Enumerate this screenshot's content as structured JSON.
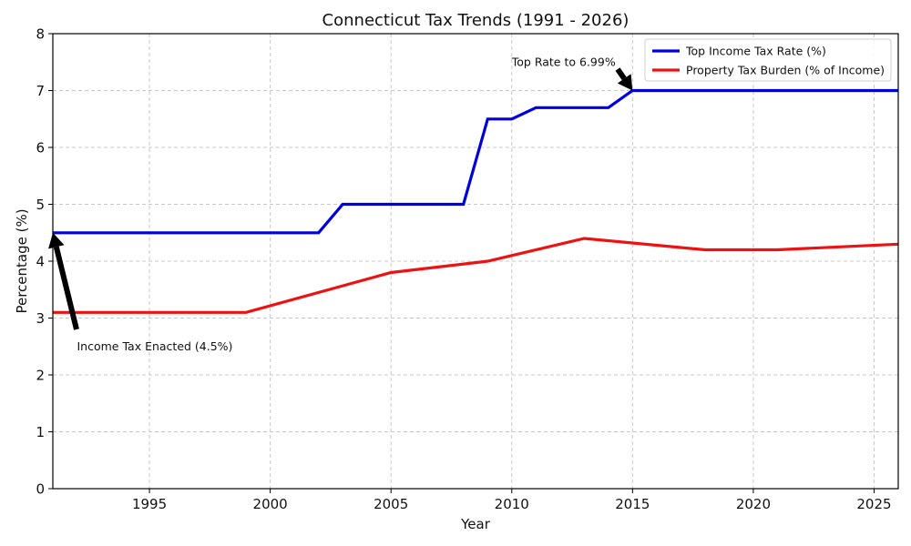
{
  "chart_data": {
    "type": "line",
    "title": "Connecticut Tax Trends (1991 - 2026)",
    "xlabel": "Year",
    "ylabel": "Percentage (%)",
    "xlim": [
      1991,
      2026
    ],
    "ylim": [
      0,
      8
    ],
    "xticks": [
      1995,
      2000,
      2005,
      2010,
      2015,
      2020,
      2025
    ],
    "yticks": [
      0,
      1,
      2,
      3,
      4,
      5,
      6,
      7,
      8
    ],
    "grid": true,
    "legend_position": "top-right",
    "series": [
      {
        "name": "Top Income Tax Rate (%)",
        "color": "#0000dd",
        "x": [
          1991,
          2002,
          2003,
          2008,
          2009,
          2010,
          2011,
          2014,
          2015,
          2026
        ],
        "y": [
          4.5,
          4.5,
          5.0,
          5.0,
          6.5,
          6.5,
          6.7,
          6.7,
          7.0,
          7.0
        ]
      },
      {
        "name": "Property Tax Burden (% of Income)",
        "color": "#ee1111",
        "x": [
          1991,
          1999,
          2005,
          2009,
          2013,
          2018,
          2021,
          2026
        ],
        "y": [
          3.1,
          3.1,
          3.8,
          4.0,
          4.4,
          4.2,
          4.2,
          4.3
        ]
      }
    ],
    "annotations": [
      {
        "text": "Income Tax Enacted (4.5%)",
        "point": [
          1991,
          4.5
        ],
        "text_at": [
          1992,
          2.5
        ]
      },
      {
        "text": "Top Rate to 6.99%",
        "point": [
          2015,
          7.0
        ],
        "text_at": [
          2010,
          7.5
        ]
      }
    ]
  }
}
